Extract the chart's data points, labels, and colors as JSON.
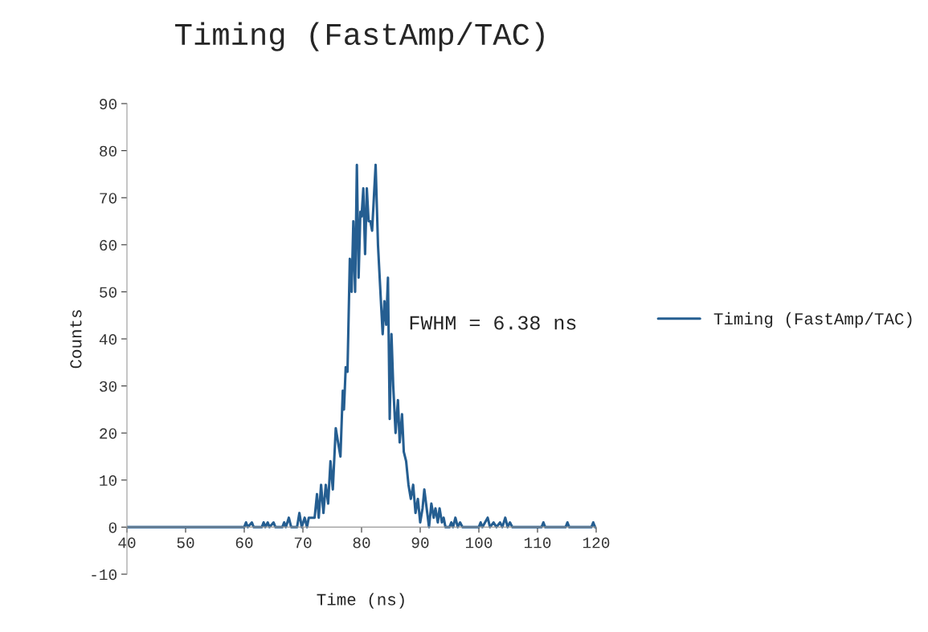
{
  "chart_data": {
    "type": "line",
    "title": "Timing (FastAmp/TAC)",
    "xlabel": "Time (ns)",
    "ylabel": "Counts",
    "annotations": [
      "FWHM = 6.38 ns"
    ],
    "xlim": [
      40,
      120
    ],
    "xticks": [
      40,
      50,
      60,
      70,
      80,
      90,
      100,
      110,
      120
    ],
    "ylim": [
      -10,
      90
    ],
    "yticks": [
      -10,
      0,
      10,
      20,
      30,
      40,
      50,
      60,
      70,
      80,
      90
    ],
    "grid": false,
    "legend": "right",
    "marker": "none",
    "line_style": "solid",
    "series": [
      {
        "name": "Timing (FastAmp/TAC)",
        "color": "#255e91",
        "x": [
          40,
          60,
          60.3,
          60.6,
          61.3,
          61.6,
          63,
          63.3,
          63.6,
          64,
          64.3,
          65,
          65.3,
          66.5,
          66.8,
          67.1,
          67.6,
          68,
          69,
          69.4,
          69.8,
          70.3,
          70.7,
          71,
          72,
          72.4,
          72.7,
          73.1,
          73.5,
          73.9,
          74.3,
          74.7,
          75.1,
          75.6,
          76,
          76.4,
          76.8,
          77,
          77.3,
          77.6,
          78,
          78.3,
          78.6,
          78.9,
          79.2,
          79.5,
          79.8,
          80,
          80.3,
          80.6,
          80.9,
          81.2,
          81.5,
          81.8,
          82.1,
          82.4,
          82.8,
          83.3,
          83.6,
          83.9,
          84.2,
          84.5,
          84.8,
          85.1,
          85.4,
          85.8,
          86.2,
          86.5,
          86.9,
          87.2,
          87.6,
          88,
          88.4,
          88.8,
          89.2,
          89.6,
          90,
          90.4,
          90.7,
          91.1,
          91.5,
          91.9,
          92.3,
          92.6,
          93,
          93.3,
          93.7,
          94,
          94.3,
          95,
          95.3,
          95.6,
          96,
          96.4,
          96.8,
          97.2,
          100,
          100.3,
          100.6,
          101.5,
          101.9,
          102.5,
          103,
          103.6,
          104,
          104.5,
          104.9,
          105.3,
          105.7,
          110.7,
          111,
          111.3,
          114.8,
          115.1,
          115.4,
          119.2,
          119.5,
          119.8,
          120
        ],
        "values": [
          0,
          0,
          1,
          0,
          1,
          0,
          0,
          1,
          0,
          1,
          0,
          1,
          0,
          0,
          1,
          0,
          2,
          0,
          0,
          3,
          0,
          2,
          0,
          2,
          2,
          7,
          2,
          9,
          3,
          9,
          5,
          14,
          8,
          21,
          18,
          15,
          29,
          25,
          34,
          33,
          57,
          50,
          65,
          50,
          77,
          53,
          67,
          66,
          72,
          58,
          72,
          65,
          65,
          63,
          70,
          77,
          60,
          48,
          41,
          48,
          43,
          53,
          23,
          41,
          30,
          20,
          27,
          18,
          24,
          16,
          14,
          9,
          6,
          9,
          3,
          6,
          1,
          4,
          8,
          4,
          0,
          5,
          2,
          4,
          1,
          4,
          1,
          2,
          0,
          0,
          1,
          0,
          2,
          0,
          1,
          0,
          0,
          1,
          0,
          2,
          0,
          1,
          0,
          1,
          0,
          2,
          0,
          1,
          0,
          0,
          1,
          0,
          0,
          1,
          0,
          0,
          1,
          0,
          0
        ]
      }
    ]
  }
}
